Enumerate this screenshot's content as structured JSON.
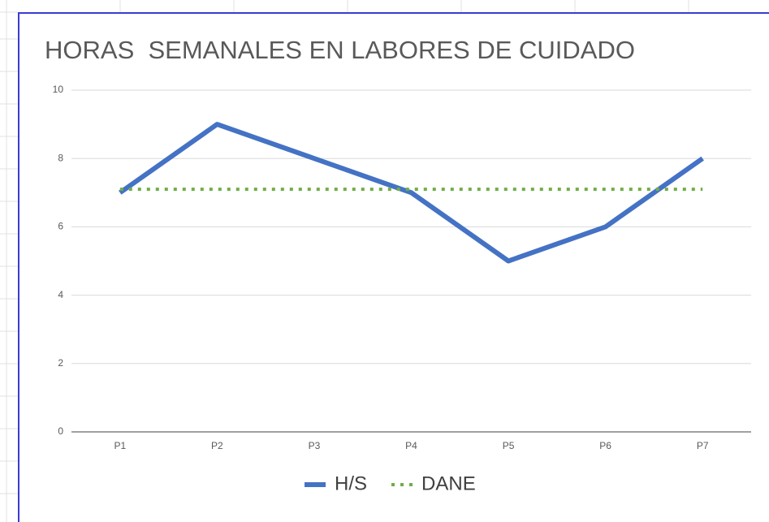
{
  "chart_data": {
    "type": "line",
    "title": "HORAS  SEMANALES EN LABORES DE CUIDADO",
    "categories": [
      "P1",
      "P2",
      "P3",
      "P4",
      "P5",
      "P6",
      "P7"
    ],
    "series": [
      {
        "name": "H/S",
        "color": "#4472c4",
        "values": [
          7,
          9,
          8,
          7,
          5,
          6,
          8
        ]
      },
      {
        "name": "DANE",
        "color": "#70ad47",
        "style": "dotted",
        "values": [
          7.1,
          7.1,
          7.1,
          7.1,
          7.1,
          7.1,
          7.1
        ]
      }
    ],
    "ylim": [
      0,
      10
    ],
    "yticks": [
      0,
      2,
      4,
      6,
      8,
      10
    ],
    "grid": true,
    "legend": "bottom"
  }
}
